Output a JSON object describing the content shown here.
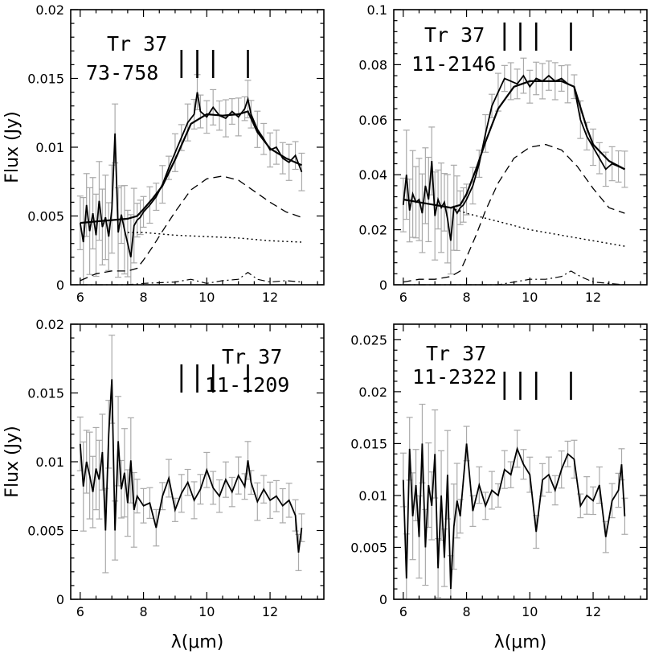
{
  "figure": {
    "x_axis_label": "λ(μm)",
    "y_axis_label": "Flux (Jy)"
  },
  "chart_data": [
    {
      "type": "line",
      "panel": "top-left",
      "annotation": [
        "Tr 37",
        "73-758"
      ],
      "xlim": [
        5.7,
        13.7
      ],
      "ylim": [
        0,
        0.02
      ],
      "xticks": [
        6,
        8,
        10,
        12
      ],
      "xtick_labels": [
        "6",
        "8",
        "10",
        "12"
      ],
      "yticks": [
        0,
        0.005,
        0.01,
        0.015,
        0.02
      ],
      "ytick_labels": [
        "0",
        "0.005",
        "0.01",
        "0.015",
        "0.02"
      ],
      "show_xlabel": false,
      "show_ylabel": true,
      "feature_marks_um": [
        9.2,
        9.7,
        10.2,
        11.3
      ],
      "series": [
        {
          "name": "observed spectrum",
          "style": "solid-thin",
          "x": [
            6.0,
            6.1,
            6.2,
            6.3,
            6.4,
            6.5,
            6.6,
            6.7,
            6.8,
            6.9,
            7.0,
            7.1,
            7.2,
            7.3,
            7.4,
            7.5,
            7.6,
            7.7,
            7.8,
            7.9,
            8.0,
            8.2,
            8.4,
            8.6,
            8.8,
            9.0,
            9.2,
            9.4,
            9.6,
            9.7,
            9.8,
            10.0,
            10.2,
            10.4,
            10.6,
            10.8,
            11.0,
            11.2,
            11.3,
            11.4,
            11.6,
            11.8,
            12.0,
            12.2,
            12.4,
            12.6,
            12.8,
            13.0
          ],
          "y": [
            0.0045,
            0.0031,
            0.0058,
            0.0039,
            0.0052,
            0.0036,
            0.0061,
            0.0042,
            0.0049,
            0.0035,
            0.0055,
            0.011,
            0.0038,
            0.0051,
            0.004,
            0.003,
            0.002,
            0.0043,
            0.0047,
            0.0049,
            0.0053,
            0.0058,
            0.0064,
            0.0073,
            0.0085,
            0.0096,
            0.0107,
            0.0118,
            0.0124,
            0.014,
            0.0126,
            0.0122,
            0.0129,
            0.0123,
            0.0121,
            0.0126,
            0.0122,
            0.0128,
            0.0135,
            0.0124,
            0.0113,
            0.0106,
            0.0098,
            0.01,
            0.0092,
            0.0089,
            0.0094,
            0.0082
          ]
        },
        {
          "name": "model fit",
          "style": "solid-thick",
          "x": [
            6.0,
            6.5,
            7.0,
            7.5,
            7.8,
            8.0,
            8.3,
            8.6,
            9.0,
            9.5,
            10.0,
            10.5,
            11.0,
            11.3,
            11.6,
            12.0,
            12.5,
            13.0
          ],
          "y": [
            0.0045,
            0.0046,
            0.0047,
            0.0048,
            0.005,
            0.0055,
            0.0063,
            0.0072,
            0.0091,
            0.0117,
            0.0124,
            0.0123,
            0.0124,
            0.0126,
            0.0111,
            0.0099,
            0.0092,
            0.0087
          ]
        },
        {
          "name": "dashed component",
          "style": "dashed",
          "x": [
            6.0,
            6.5,
            7.0,
            7.5,
            7.8,
            8.0,
            8.3,
            8.6,
            9.0,
            9.5,
            10.0,
            10.5,
            11.0,
            11.5,
            12.0,
            12.5,
            13.0
          ],
          "y": [
            0.0003,
            0.0008,
            0.001,
            0.001,
            0.0012,
            0.0018,
            0.0028,
            0.0039,
            0.0053,
            0.0069,
            0.0077,
            0.0079,
            0.0076,
            0.0068,
            0.006,
            0.0053,
            0.0049
          ]
        },
        {
          "name": "dotted component",
          "style": "dotted",
          "x": [
            7.5,
            8.0,
            9.0,
            10.0,
            11.0,
            12.0,
            13.0
          ],
          "y": [
            0.0038,
            0.0038,
            0.0036,
            0.0035,
            0.0034,
            0.0032,
            0.0031
          ]
        },
        {
          "name": "dash-dot component",
          "style": "dash-dot",
          "x": [
            6.0,
            6.5,
            7.0,
            7.5,
            8.0,
            9.0,
            9.5,
            10.0,
            10.5,
            11.0,
            11.3,
            11.6,
            12.0,
            12.5,
            13.0
          ],
          "y": [
            0.0,
            0.0,
            0.0,
            0.0,
            0.0001,
            0.0002,
            0.0004,
            0.0001,
            0.0003,
            0.0004,
            0.0009,
            0.0004,
            0.0002,
            0.0003,
            0.0002
          ]
        }
      ]
    },
    {
      "type": "line",
      "panel": "top-right",
      "annotation": [
        "Tr 37",
        "11-2146"
      ],
      "xlim": [
        5.7,
        13.7
      ],
      "ylim": [
        0,
        0.1
      ],
      "xticks": [
        6,
        8,
        10,
        12
      ],
      "xtick_labels": [
        "6",
        "8",
        "10",
        "12"
      ],
      "yticks": [
        0,
        0.02,
        0.04,
        0.06,
        0.08,
        0.1
      ],
      "ytick_labels": [
        "0",
        "0.02",
        "0.04",
        "0.06",
        "0.08",
        "0.1"
      ],
      "show_xlabel": false,
      "show_ylabel": false,
      "feature_marks_um": [
        9.2,
        9.7,
        10.2,
        11.3
      ],
      "series": [
        {
          "name": "observed spectrum",
          "style": "solid-thin",
          "x": [
            6.0,
            6.1,
            6.2,
            6.3,
            6.4,
            6.5,
            6.6,
            6.7,
            6.8,
            6.9,
            7.0,
            7.1,
            7.2,
            7.3,
            7.4,
            7.5,
            7.6,
            7.7,
            7.8,
            7.9,
            8.0,
            8.2,
            8.4,
            8.6,
            8.8,
            9.0,
            9.2,
            9.4,
            9.6,
            9.8,
            10.0,
            10.2,
            10.4,
            10.6,
            10.8,
            11.0,
            11.2,
            11.4,
            11.6,
            11.8,
            12.0,
            12.2,
            12.4,
            12.6,
            12.8,
            13.0
          ],
          "y": [
            0.029,
            0.04,
            0.027,
            0.033,
            0.03,
            0.031,
            0.026,
            0.036,
            0.031,
            0.045,
            0.025,
            0.031,
            0.028,
            0.03,
            0.024,
            0.016,
            0.028,
            0.026,
            0.028,
            0.029,
            0.031,
            0.036,
            0.044,
            0.055,
            0.065,
            0.07,
            0.075,
            0.074,
            0.073,
            0.076,
            0.072,
            0.075,
            0.074,
            0.076,
            0.074,
            0.075,
            0.073,
            0.072,
            0.06,
            0.054,
            0.05,
            0.046,
            0.042,
            0.044,
            0.043,
            0.042
          ]
        },
        {
          "name": "model fit",
          "style": "solid-thick",
          "x": [
            6.0,
            6.5,
            7.0,
            7.5,
            7.8,
            8.0,
            8.3,
            8.6,
            9.0,
            9.5,
            10.0,
            10.5,
            11.0,
            11.4,
            11.8,
            12.0,
            12.5,
            13.0
          ],
          "y": [
            0.031,
            0.03,
            0.029,
            0.028,
            0.029,
            0.033,
            0.042,
            0.052,
            0.064,
            0.072,
            0.074,
            0.074,
            0.074,
            0.072,
            0.057,
            0.051,
            0.045,
            0.042
          ]
        },
        {
          "name": "dashed component",
          "style": "dashed",
          "x": [
            6.0,
            6.5,
            7.0,
            7.5,
            7.8,
            8.0,
            8.3,
            8.6,
            9.0,
            9.5,
            10.0,
            10.5,
            11.0,
            11.5,
            12.0,
            12.5,
            13.0
          ],
          "y": [
            0.001,
            0.002,
            0.002,
            0.003,
            0.005,
            0.01,
            0.018,
            0.027,
            0.037,
            0.046,
            0.05,
            0.051,
            0.049,
            0.043,
            0.035,
            0.028,
            0.026
          ]
        },
        {
          "name": "dotted component",
          "style": "dotted",
          "x": [
            7.5,
            8.0,
            9.0,
            10.0,
            11.0,
            12.0,
            13.0
          ],
          "y": [
            0.028,
            0.026,
            0.023,
            0.02,
            0.018,
            0.016,
            0.014
          ]
        },
        {
          "name": "dash-dot component",
          "style": "dash-dot",
          "x": [
            6.0,
            7.0,
            8.0,
            9.0,
            9.5,
            10.0,
            10.5,
            11.0,
            11.3,
            11.6,
            12.0,
            13.0
          ],
          "y": [
            0.0,
            0.0,
            0.0,
            0.0,
            0.001,
            0.002,
            0.002,
            0.003,
            0.005,
            0.003,
            0.001,
            0.0
          ]
        }
      ]
    },
    {
      "type": "line",
      "panel": "bottom-left",
      "annotation": [
        "Tr 37",
        "11-1209"
      ],
      "xlim": [
        5.7,
        13.7
      ],
      "ylim": [
        0,
        0.02
      ],
      "xticks": [
        6,
        8,
        10,
        12
      ],
      "xtick_labels": [
        "6",
        "8",
        "10",
        "12"
      ],
      "yticks": [
        0,
        0.005,
        0.01,
        0.015,
        0.02
      ],
      "ytick_labels": [
        "0",
        "0.005",
        "0.01",
        "0.015",
        "0.02"
      ],
      "show_xlabel": true,
      "show_ylabel": true,
      "feature_marks_um": [
        9.2,
        9.7,
        10.2,
        11.3
      ],
      "series": [
        {
          "name": "observed spectrum",
          "style": "solid-thin",
          "x": [
            6.0,
            6.1,
            6.2,
            6.3,
            6.4,
            6.5,
            6.6,
            6.7,
            6.8,
            6.9,
            7.0,
            7.1,
            7.2,
            7.3,
            7.4,
            7.5,
            7.6,
            7.7,
            7.8,
            8.0,
            8.2,
            8.4,
            8.6,
            8.8,
            9.0,
            9.2,
            9.4,
            9.6,
            9.8,
            10.0,
            10.2,
            10.4,
            10.6,
            10.8,
            11.0,
            11.2,
            11.3,
            11.4,
            11.6,
            11.8,
            12.0,
            12.2,
            12.4,
            12.6,
            12.8,
            12.9,
            13.0
          ],
          "y": [
            0.0113,
            0.0082,
            0.01,
            0.009,
            0.0078,
            0.0095,
            0.0087,
            0.0107,
            0.005,
            0.012,
            0.016,
            0.005,
            0.0115,
            0.008,
            0.0092,
            0.007,
            0.0101,
            0.0065,
            0.0075,
            0.0068,
            0.007,
            0.0052,
            0.0075,
            0.0088,
            0.0065,
            0.0077,
            0.0085,
            0.0072,
            0.008,
            0.0094,
            0.0081,
            0.0075,
            0.0087,
            0.0078,
            0.009,
            0.0082,
            0.0101,
            0.0085,
            0.0071,
            0.008,
            0.0072,
            0.0075,
            0.0068,
            0.0072,
            0.0061,
            0.0034,
            0.0052
          ]
        }
      ]
    },
    {
      "type": "line",
      "panel": "bottom-right",
      "annotation": [
        "Tr 37",
        "11-2322"
      ],
      "xlim": [
        5.7,
        13.7
      ],
      "ylim": [
        0,
        0.0265
      ],
      "xticks": [
        6,
        8,
        10,
        12
      ],
      "xtick_labels": [
        "6",
        "8",
        "10",
        "12"
      ],
      "yticks": [
        0,
        0.005,
        0.01,
        0.015,
        0.02,
        0.025
      ],
      "ytick_labels": [
        "0",
        "0.005",
        "0.01",
        "0.015",
        "0.02",
        "0.025"
      ],
      "show_xlabel": true,
      "show_ylabel": false,
      "feature_marks_um": [
        9.2,
        9.7,
        10.2,
        11.3
      ],
      "series": [
        {
          "name": "observed spectrum",
          "style": "solid-thin",
          "x": [
            6.0,
            6.1,
            6.2,
            6.3,
            6.4,
            6.5,
            6.6,
            6.7,
            6.8,
            6.9,
            7.0,
            7.1,
            7.2,
            7.3,
            7.4,
            7.5,
            7.6,
            7.7,
            7.8,
            8.0,
            8.2,
            8.4,
            8.6,
            8.8,
            9.0,
            9.2,
            9.4,
            9.6,
            9.8,
            10.0,
            10.2,
            10.4,
            10.6,
            10.8,
            11.0,
            11.2,
            11.4,
            11.6,
            11.8,
            12.0,
            12.2,
            12.4,
            12.6,
            12.8,
            12.9,
            13.0
          ],
          "y": [
            0.0115,
            0.002,
            0.0145,
            0.008,
            0.011,
            0.006,
            0.015,
            0.005,
            0.011,
            0.009,
            0.014,
            0.003,
            0.01,
            0.004,
            0.012,
            0.001,
            0.007,
            0.0095,
            0.008,
            0.015,
            0.0085,
            0.011,
            0.009,
            0.0105,
            0.01,
            0.0125,
            0.012,
            0.0145,
            0.013,
            0.012,
            0.0065,
            0.0115,
            0.012,
            0.0105,
            0.0125,
            0.014,
            0.0135,
            0.009,
            0.01,
            0.0095,
            0.011,
            0.006,
            0.0095,
            0.0105,
            0.013,
            0.008
          ]
        }
      ]
    }
  ]
}
